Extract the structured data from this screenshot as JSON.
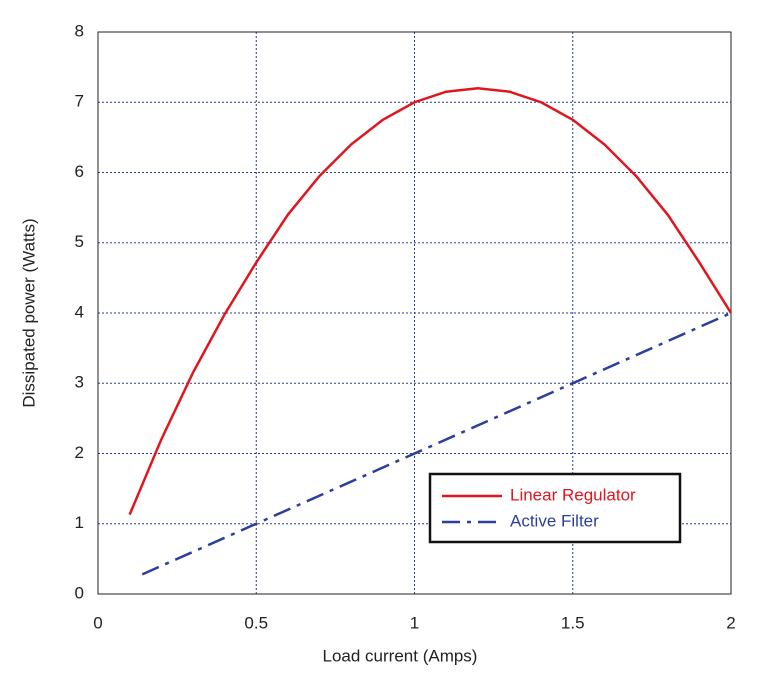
{
  "chart_data": {
    "type": "line",
    "xlabel": "Load current (Amps)",
    "ylabel": "Dissipated power (Watts)",
    "xlim": [
      0,
      2
    ],
    "xticks": [
      0,
      0.5,
      1,
      1.5,
      2
    ],
    "ylim": [
      0,
      8
    ],
    "yticks": [
      0,
      1,
      2,
      3,
      4,
      5,
      6,
      7,
      8
    ],
    "grid": true,
    "legend": "lower right",
    "series": [
      {
        "name": "Linear Regulator",
        "color": "#e0161e",
        "style": "solid",
        "x": [
          0.1,
          0.2,
          0.3,
          0.4,
          0.5,
          0.6,
          0.7,
          0.8,
          0.9,
          1.0,
          1.1,
          1.2,
          1.3,
          1.4,
          1.5,
          1.6,
          1.7,
          1.8,
          1.9,
          2.0
        ],
        "values": [
          1.13,
          2.2,
          3.15,
          3.98,
          4.72,
          5.4,
          5.95,
          6.4,
          6.75,
          7.0,
          7.15,
          7.2,
          7.15,
          7.0,
          6.75,
          6.4,
          5.95,
          5.4,
          4.72,
          4.0
        ]
      },
      {
        "name": "Active Filter",
        "color": "#2b3f9e",
        "style": "dashdot",
        "x": [
          0.14,
          2.0
        ],
        "values": [
          0.28,
          4.0
        ]
      }
    ]
  }
}
